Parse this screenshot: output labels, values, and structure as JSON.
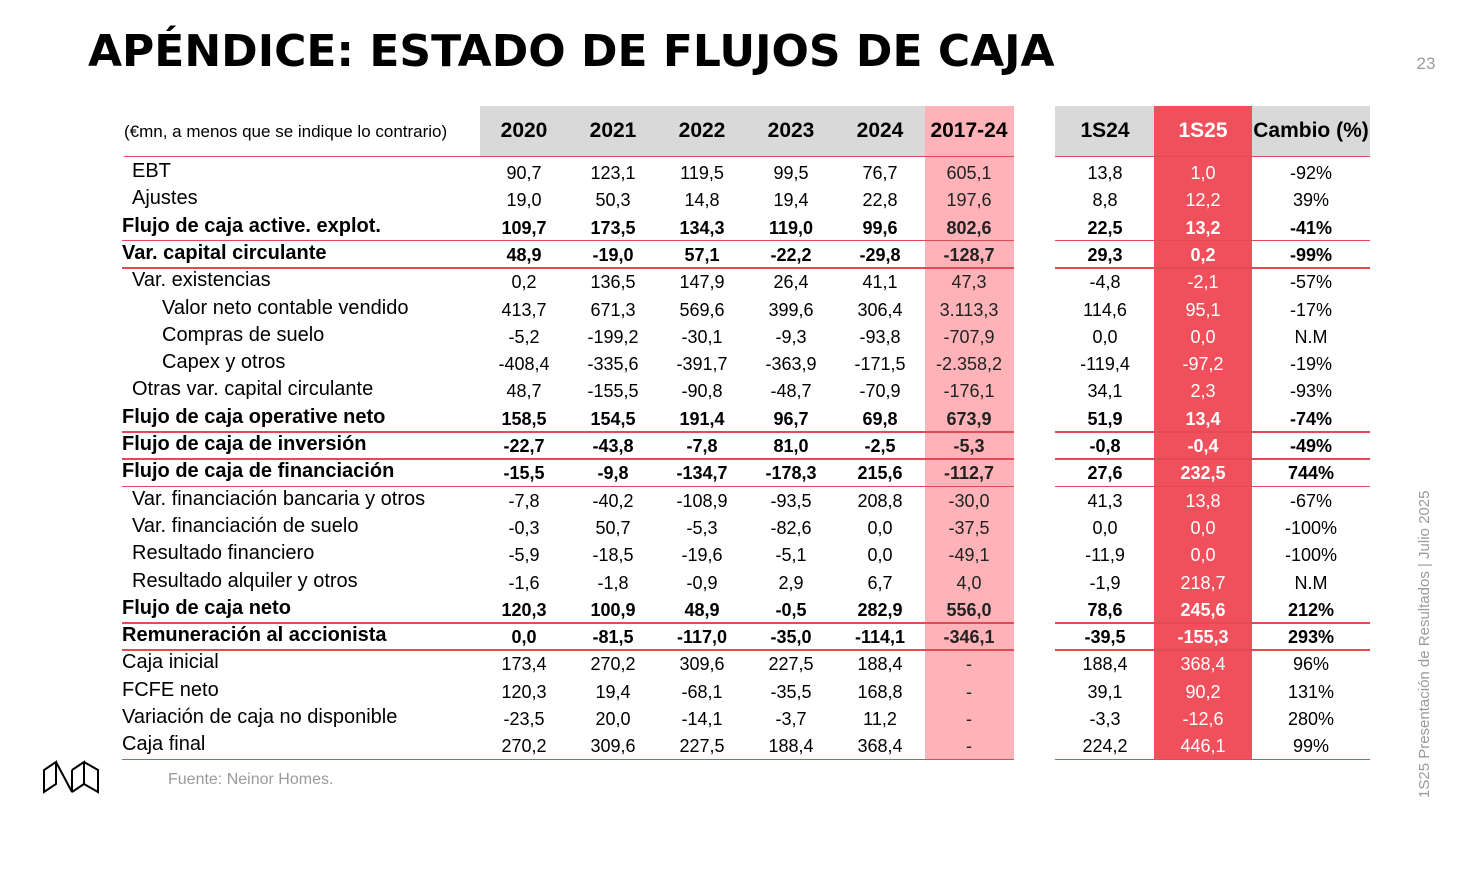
{
  "header": {
    "title": "APÉNDICE: ESTADO DE FLUJOS DE CAJA",
    "page_number": "23"
  },
  "side_text": "1S25 Presentación de Resultados | Julio 2025",
  "source": "Fuente: Neinor Homes.",
  "table": {
    "note": "(€mn, a menos que se indique lo contrario)",
    "columns": [
      "2020",
      "2021",
      "2022",
      "2023",
      "2024",
      "2017-24",
      "1S24",
      "1S25",
      "Cambio (%)"
    ],
    "rows": [
      {
        "label": "EBT",
        "indent": 1,
        "bold": false,
        "line": false,
        "values": [
          "90,7",
          "123,1",
          "119,5",
          "99,5",
          "76,7",
          "605,1",
          "13,8",
          "1,0",
          "-92%"
        ]
      },
      {
        "label": "Ajustes",
        "indent": 1,
        "bold": false,
        "line": false,
        "values": [
          "19,0",
          "50,3",
          "14,8",
          "19,4",
          "22,8",
          "197,6",
          "8,8",
          "12,2",
          "39%"
        ]
      },
      {
        "label": "Flujo de caja active. explot.",
        "indent": 0,
        "bold": true,
        "line": true,
        "values": [
          "109,7",
          "173,5",
          "134,3",
          "119,0",
          "99,6",
          "802,6",
          "22,5",
          "13,2",
          "-41%"
        ]
      },
      {
        "label": "Var. capital circulante",
        "indent": 0,
        "bold": true,
        "line": true,
        "values": [
          "48,9",
          "-19,0",
          "57,1",
          "-22,2",
          "-29,8",
          "-128,7",
          "29,3",
          "0,2",
          "-99%"
        ]
      },
      {
        "label": "Var. existencias",
        "indent": 1,
        "bold": false,
        "line": false,
        "values": [
          "0,2",
          "136,5",
          "147,9",
          "26,4",
          "41,1",
          "47,3",
          "-4,8",
          "-2,1",
          "-57%"
        ]
      },
      {
        "label": "Valor neto contable vendido",
        "indent": 2,
        "bold": false,
        "line": false,
        "values": [
          "413,7",
          "671,3",
          "569,6",
          "399,6",
          "306,4",
          "3.113,3",
          "114,6",
          "95,1",
          "-17%"
        ]
      },
      {
        "label": "Compras de suelo",
        "indent": 2,
        "bold": false,
        "line": false,
        "values": [
          "-5,2",
          "-199,2",
          "-30,1",
          "-9,3",
          "-93,8",
          "-707,9",
          "0,0",
          "0,0",
          "N.M"
        ]
      },
      {
        "label": "Capex y otros",
        "indent": 2,
        "bold": false,
        "line": false,
        "values": [
          "-408,4",
          "-335,6",
          "-391,7",
          "-363,9",
          "-171,5",
          "-2.358,2",
          "-119,4",
          "-97,2",
          "-19%"
        ]
      },
      {
        "label": "Otras var. capital circulante",
        "indent": 1,
        "bold": false,
        "line": false,
        "values": [
          "48,7",
          "-155,5",
          "-90,8",
          "-48,7",
          "-70,9",
          "-176,1",
          "34,1",
          "2,3",
          "-93%"
        ]
      },
      {
        "label": "Flujo de caja operative neto",
        "indent": 0,
        "bold": true,
        "line": true,
        "values": [
          "158,5",
          "154,5",
          "191,4",
          "96,7",
          "69,8",
          "673,9",
          "51,9",
          "13,4",
          "-74%"
        ]
      },
      {
        "label": "Flujo de caja de inversión",
        "indent": 0,
        "bold": true,
        "line": true,
        "values": [
          "-22,7",
          "-43,8",
          "-7,8",
          "81,0",
          "-2,5",
          "-5,3",
          "-0,8",
          "-0,4",
          "-49%"
        ]
      },
      {
        "label": "Flujo de caja de financiación",
        "indent": 0,
        "bold": true,
        "line": true,
        "values": [
          "-15,5",
          "-9,8",
          "-134,7",
          "-178,3",
          "215,6",
          "-112,7",
          "27,6",
          "232,5",
          "744%"
        ]
      },
      {
        "label": "Var. financiación bancaria y otros",
        "indent": 1,
        "bold": false,
        "line": false,
        "values": [
          "-7,8",
          "-40,2",
          "-108,9",
          "-93,5",
          "208,8",
          "-30,0",
          "41,3",
          "13,8",
          "-67%"
        ]
      },
      {
        "label": "Var. financiación de suelo",
        "indent": 1,
        "bold": false,
        "line": false,
        "values": [
          "-0,3",
          "50,7",
          "-5,3",
          "-82,6",
          "0,0",
          "-37,5",
          "0,0",
          "0,0",
          "-100%"
        ]
      },
      {
        "label": "Resultado financiero",
        "indent": 1,
        "bold": false,
        "line": false,
        "values": [
          "-5,9",
          "-18,5",
          "-19,6",
          "-5,1",
          "0,0",
          "-49,1",
          "-11,9",
          "0,0",
          "-100%"
        ]
      },
      {
        "label": "Resultado alquiler y otros",
        "indent": 1,
        "bold": false,
        "line": false,
        "values": [
          "-1,6",
          "-1,8",
          "-0,9",
          "2,9",
          "6,7",
          "4,0",
          "-1,9",
          "218,7",
          "N.M"
        ]
      },
      {
        "label": "Flujo de caja neto",
        "indent": 0,
        "bold": true,
        "line": true,
        "values": [
          "120,3",
          "100,9",
          "48,9",
          "-0,5",
          "282,9",
          "556,0",
          "78,6",
          "245,6",
          "212%"
        ]
      },
      {
        "label": "Remuneración al accionista",
        "indent": 0,
        "bold": true,
        "line": true,
        "values": [
          "0,0",
          "-81,5",
          "-117,0",
          "-35,0",
          "-114,1",
          "-346,1",
          "-39,5",
          "-155,3",
          "293%"
        ]
      },
      {
        "label": "Caja inicial",
        "indent": 0,
        "bold": false,
        "line": false,
        "values": [
          "173,4",
          "270,2",
          "309,6",
          "227,5",
          "188,4",
          "-",
          "188,4",
          "368,4",
          "96%"
        ]
      },
      {
        "label": "FCFE neto",
        "indent": 0,
        "bold": false,
        "line": false,
        "values": [
          "120,3",
          "19,4",
          "-68,1",
          "-35,5",
          "168,8",
          "-",
          "39,1",
          "90,2",
          "131%"
        ]
      },
      {
        "label": "Variación de caja no disponible",
        "indent": 0,
        "bold": false,
        "line": false,
        "values": [
          "-23,5",
          "20,0",
          "-14,1",
          "-3,7",
          "11,2",
          "-",
          "-3,3",
          "-12,6",
          "280%"
        ]
      },
      {
        "label": "Caja final",
        "indent": 0,
        "bold": false,
        "line": true,
        "values": [
          "270,2",
          "309,6",
          "227,5",
          "188,4",
          "368,4",
          "-",
          "224,2",
          "446,1",
          "99%"
        ]
      }
    ]
  }
}
